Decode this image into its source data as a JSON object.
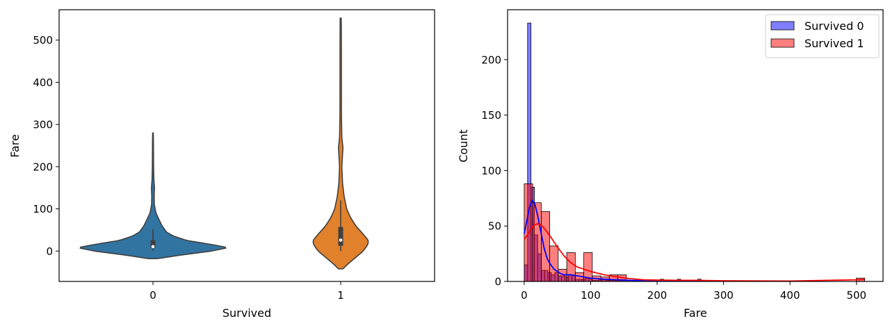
{
  "chart_data": [
    {
      "type": "violin",
      "xlabel": "Survived",
      "ylabel": "Fare",
      "categories": [
        "0",
        "1"
      ],
      "ylim": [
        -72,
        572
      ],
      "yticks": [
        0,
        100,
        200,
        300,
        400,
        500
      ],
      "grid": false,
      "series": [
        {
          "category": "0",
          "color": "#3274a1",
          "extent": [
            -18,
            280
          ],
          "profile": [
            [
              -18,
              0.06
            ],
            [
              -10,
              0.35
            ],
            [
              0,
              0.78
            ],
            [
              8,
              1.0
            ],
            [
              15,
              0.8
            ],
            [
              25,
              0.45
            ],
            [
              35,
              0.28
            ],
            [
              45,
              0.18
            ],
            [
              60,
              0.12
            ],
            [
              75,
              0.08
            ],
            [
              90,
              0.04
            ],
            [
              110,
              0.018
            ],
            [
              130,
              0.016
            ],
            [
              150,
              0.02
            ],
            [
              170,
              0.012
            ],
            [
              200,
              0.008
            ],
            [
              230,
              0.007
            ],
            [
              260,
              0.006
            ],
            [
              280,
              0.004
            ]
          ],
          "median": 10.5,
          "q1": 7.9,
          "q3": 26,
          "whisker": [
            0,
            52
          ]
        },
        {
          "category": "1",
          "color": "#e1812c",
          "extent": [
            -42,
            552
          ],
          "profile": [
            [
              -42,
              0.03
            ],
            [
              -30,
              0.1
            ],
            [
              -15,
              0.2
            ],
            [
              0,
              0.3
            ],
            [
              15,
              0.36
            ],
            [
              25,
              0.37
            ],
            [
              40,
              0.3
            ],
            [
              60,
              0.2
            ],
            [
              80,
              0.13
            ],
            [
              100,
              0.08
            ],
            [
              130,
              0.045
            ],
            [
              160,
              0.025
            ],
            [
              200,
              0.015
            ],
            [
              230,
              0.025
            ],
            [
              245,
              0.03
            ],
            [
              270,
              0.015
            ],
            [
              320,
              0.01
            ],
            [
              400,
              0.009
            ],
            [
              480,
              0.009
            ],
            [
              552,
              0.007
            ]
          ],
          "median": 26,
          "q1": 12.5,
          "q3": 57,
          "whisker": [
            0,
            120
          ]
        }
      ]
    },
    {
      "type": "histogram",
      "xlabel": "Fare",
      "ylabel": "Count",
      "xlim": [
        -25,
        540
      ],
      "ylim": [
        0,
        245
      ],
      "xticks": [
        0,
        100,
        200,
        300,
        400,
        500
      ],
      "yticks": [
        0,
        50,
        100,
        150,
        200
      ],
      "legend_position": "upper right",
      "series": [
        {
          "name": "Survived 0",
          "color": "#0000ff",
          "bin_width": 5.12,
          "bins_start": 0,
          "counts": [
            15,
            233,
            85,
            42,
            25,
            10,
            10,
            8,
            6,
            8,
            5,
            5,
            4,
            6,
            5,
            2,
            2,
            2,
            3,
            2,
            1,
            1,
            2,
            2,
            1,
            1,
            1,
            1,
            1,
            1,
            1,
            1,
            1,
            1,
            1,
            1,
            1,
            1,
            1,
            1,
            2,
            1,
            1,
            1,
            1,
            2,
            1,
            1,
            1,
            1,
            1,
            2,
            1,
            1
          ],
          "kde": [
            [
              0,
              43
            ],
            [
              4,
              55
            ],
            [
              8,
              67
            ],
            [
              12,
              73
            ],
            [
              16,
              70
            ],
            [
              20,
              60
            ],
            [
              25,
              45
            ],
            [
              30,
              30
            ],
            [
              35,
              20
            ],
            [
              40,
              15
            ],
            [
              45,
              11
            ],
            [
              50,
              9
            ],
            [
              55,
              7
            ],
            [
              60,
              6
            ],
            [
              70,
              6
            ],
            [
              80,
              5
            ],
            [
              90,
              4
            ],
            [
              100,
              3
            ],
            [
              120,
              2
            ],
            [
              140,
              1.5
            ],
            [
              160,
              1
            ],
            [
              200,
              0.6
            ],
            [
              240,
              0.4
            ],
            [
              270,
              0.3
            ]
          ]
        },
        {
          "name": "Survived 1",
          "color": "#ff0000",
          "bin_width": 12.81,
          "bins_start": 0,
          "counts": [
            88,
            71,
            63,
            32,
            11,
            26,
            8,
            26,
            5,
            4,
            6,
            6,
            1,
            1,
            0,
            0,
            1,
            1,
            0,
            0,
            1,
            0,
            0,
            0,
            0,
            0,
            0,
            0,
            0,
            0,
            0,
            0,
            0,
            0,
            0,
            0,
            0,
            0,
            0,
            3
          ],
          "kde": [
            [
              0,
              38
            ],
            [
              5,
              42
            ],
            [
              10,
              47
            ],
            [
              15,
              51
            ],
            [
              20,
              52
            ],
            [
              25,
              51
            ],
            [
              30,
              48
            ],
            [
              40,
              40
            ],
            [
              50,
              31
            ],
            [
              60,
              23
            ],
            [
              70,
              17
            ],
            [
              80,
              13
            ],
            [
              90,
              11
            ],
            [
              100,
              9
            ],
            [
              110,
              7.5
            ],
            [
              120,
              6
            ],
            [
              140,
              4
            ],
            [
              160,
              2.5
            ],
            [
              180,
              1.5
            ],
            [
              200,
              1.2
            ],
            [
              230,
              1
            ],
            [
              260,
              1
            ],
            [
              300,
              0.6
            ],
            [
              400,
              0.4
            ],
            [
              500,
              1.5
            ],
            [
              512,
              1.8
            ]
          ]
        }
      ]
    }
  ]
}
